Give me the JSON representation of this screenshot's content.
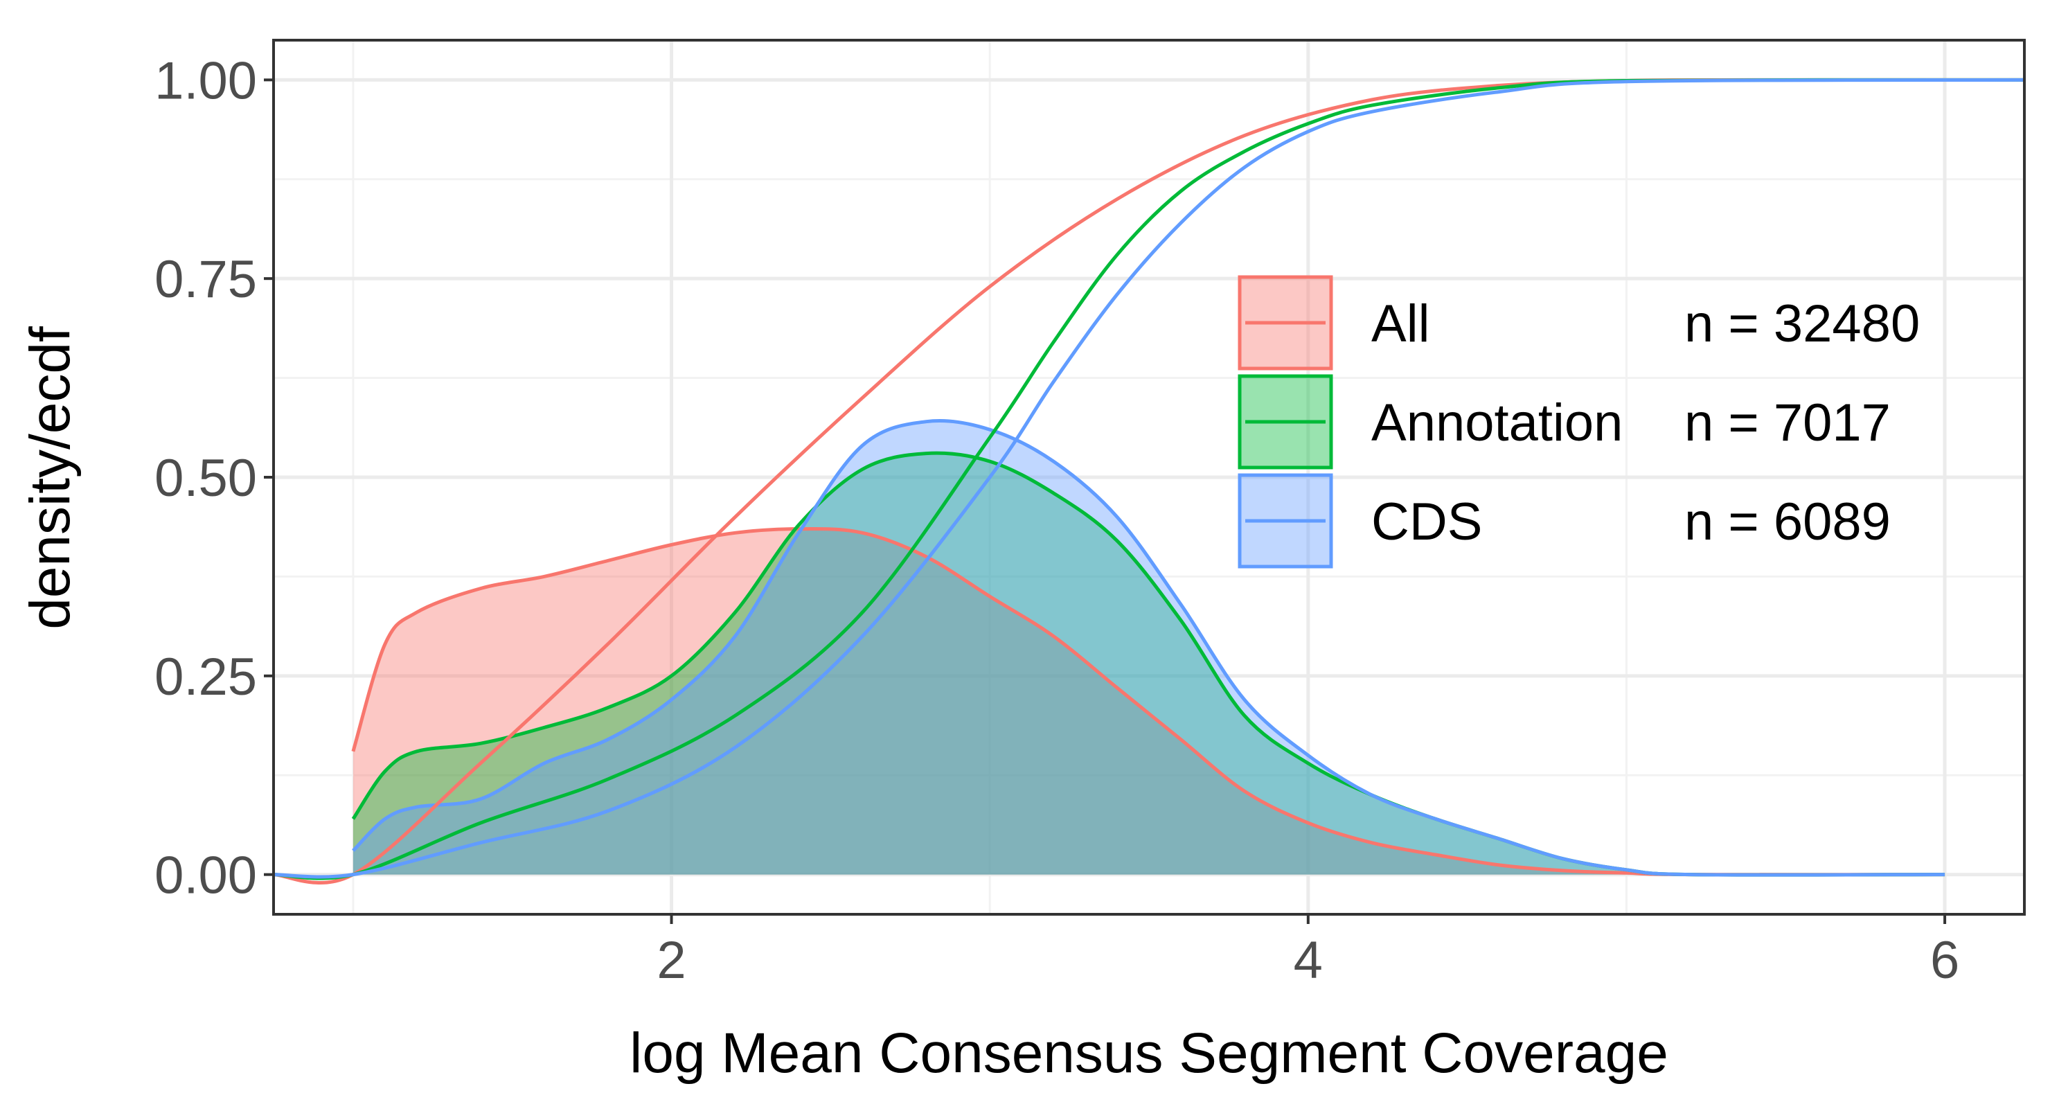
{
  "chart_data": {
    "type": "area",
    "title": "",
    "xlabel": "log Mean Consensus Segment Coverage",
    "ylabel": "density/ecdf",
    "xlim": [
      0.75,
      6.25
    ],
    "ylim": [
      -0.05,
      1.05
    ],
    "xticks": [
      2,
      4,
      6
    ],
    "yticks": [
      0.0,
      0.25,
      0.5,
      0.75,
      1.0
    ],
    "xtick_labels": [
      "2",
      "4",
      "6"
    ],
    "ytick_labels": [
      "0.00",
      "0.25",
      "0.50",
      "0.75",
      "1.00"
    ],
    "grid": true,
    "legend_position": "right",
    "series": [
      {
        "name": "All",
        "n_label": "n = 32480",
        "color": "#F8766D",
        "density": {
          "x": [
            1.0,
            1.1,
            1.2,
            1.4,
            1.6,
            1.8,
            2.0,
            2.2,
            2.4,
            2.6,
            2.8,
            3.0,
            3.2,
            3.4,
            3.6,
            3.8,
            4.0,
            4.2,
            4.4,
            4.6,
            4.8,
            5.0,
            5.2,
            6.0
          ],
          "y": [
            0.155,
            0.29,
            0.33,
            0.36,
            0.375,
            0.395,
            0.415,
            0.43,
            0.435,
            0.43,
            0.4,
            0.35,
            0.3,
            0.235,
            0.17,
            0.105,
            0.065,
            0.04,
            0.025,
            0.012,
            0.005,
            0.002,
            0.0,
            0.0
          ]
        },
        "ecdf": {
          "x": [
            0.75,
            1.0,
            1.4,
            1.8,
            2.2,
            2.6,
            3.0,
            3.4,
            3.8,
            4.2,
            4.6,
            5.0,
            5.4,
            6.25
          ],
          "y": [
            0.0,
            0.0,
            0.14,
            0.29,
            0.45,
            0.6,
            0.74,
            0.85,
            0.93,
            0.975,
            0.993,
            0.999,
            1.0,
            1.0
          ]
        }
      },
      {
        "name": "Annotation",
        "n_label": "n = 7017",
        "color": "#00BA38",
        "density": {
          "x": [
            1.0,
            1.1,
            1.2,
            1.4,
            1.6,
            1.8,
            2.0,
            2.2,
            2.4,
            2.6,
            2.8,
            3.0,
            3.2,
            3.4,
            3.6,
            3.8,
            4.0,
            4.2,
            4.4,
            4.6,
            4.8,
            5.0,
            5.2,
            6.0
          ],
          "y": [
            0.07,
            0.13,
            0.155,
            0.165,
            0.185,
            0.21,
            0.25,
            0.33,
            0.44,
            0.51,
            0.53,
            0.52,
            0.48,
            0.42,
            0.32,
            0.2,
            0.14,
            0.1,
            0.07,
            0.045,
            0.02,
            0.006,
            0.0,
            0.0
          ]
        },
        "ecdf": {
          "x": [
            0.75,
            1.0,
            1.4,
            1.8,
            2.2,
            2.6,
            3.0,
            3.2,
            3.4,
            3.6,
            3.8,
            4.0,
            4.2,
            4.6,
            5.0,
            6.25
          ],
          "y": [
            0.0,
            0.0,
            0.065,
            0.12,
            0.2,
            0.33,
            0.55,
            0.67,
            0.78,
            0.86,
            0.91,
            0.945,
            0.968,
            0.99,
            0.999,
            1.0
          ]
        }
      },
      {
        "name": "CDS",
        "n_label": "n = 6089",
        "color": "#619CFF",
        "density": {
          "x": [
            1.0,
            1.1,
            1.2,
            1.4,
            1.6,
            1.8,
            2.0,
            2.2,
            2.4,
            2.6,
            2.8,
            3.0,
            3.2,
            3.4,
            3.6,
            3.8,
            4.0,
            4.2,
            4.4,
            4.6,
            4.8,
            5.0,
            5.2,
            6.0
          ],
          "y": [
            0.03,
            0.07,
            0.085,
            0.095,
            0.14,
            0.17,
            0.22,
            0.3,
            0.43,
            0.54,
            0.57,
            0.56,
            0.52,
            0.45,
            0.34,
            0.22,
            0.15,
            0.1,
            0.07,
            0.045,
            0.02,
            0.006,
            0.0,
            0.0
          ]
        },
        "ecdf": {
          "x": [
            0.75,
            1.0,
            1.4,
            1.8,
            2.2,
            2.6,
            3.0,
            3.2,
            3.4,
            3.6,
            3.8,
            4.0,
            4.2,
            4.6,
            5.0,
            6.25
          ],
          "y": [
            0.0,
            0.0,
            0.04,
            0.08,
            0.16,
            0.3,
            0.5,
            0.62,
            0.73,
            0.82,
            0.89,
            0.935,
            0.96,
            0.985,
            0.998,
            1.0
          ]
        }
      }
    ]
  }
}
